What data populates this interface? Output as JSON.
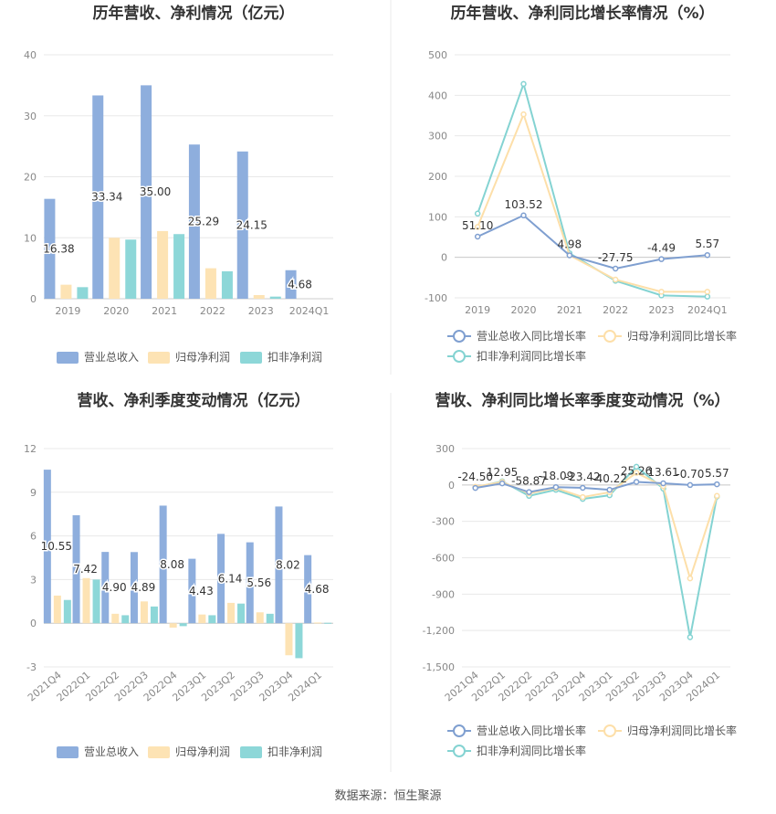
{
  "source": "数据来源：恒生聚源",
  "colors": {
    "revenue": "#8eaedd",
    "net_profit": "#fde3b4",
    "deducted": "#8dd7d8",
    "revenue_line": "#7f9fd0",
    "net_line": "#fddfa9",
    "deducted_line": "#84d3d2",
    "grid": "#e8e8e8",
    "axis_text": "#888888"
  },
  "chart_data": [
    {
      "type": "bar",
      "title": "历年营收、净利情况（亿元）",
      "categories": [
        "2019",
        "2020",
        "2021",
        "2022",
        "2023",
        "2024Q1"
      ],
      "ylim": [
        0,
        40
      ],
      "yticks": [
        "0",
        "10",
        "20",
        "30",
        "40"
      ],
      "grid": true,
      "legend_position": "bottom",
      "series": [
        {
          "name": "营业总收入",
          "values": [
            16.38,
            33.34,
            35.0,
            25.29,
            24.15,
            4.68
          ]
        },
        {
          "name": "归母净利润",
          "values": [
            2.3,
            10.0,
            11.1,
            5.0,
            0.6,
            null
          ]
        },
        {
          "name": "扣非净利润",
          "values": [
            1.9,
            9.7,
            10.6,
            4.5,
            0.35,
            null
          ]
        }
      ],
      "data_labels": [
        "16.38",
        "33.34",
        "35.00",
        "25.29",
        "24.15",
        "4.68"
      ]
    },
    {
      "type": "line",
      "title": "历年营收、净利同比增长率情况（%）",
      "categories": [
        "2019",
        "2020",
        "2021",
        "2022",
        "2023",
        "2024Q1"
      ],
      "ylim": [
        -100,
        500
      ],
      "yticks": [
        "-100",
        "0",
        "100",
        "200",
        "300",
        "400",
        "500"
      ],
      "grid": true,
      "legend_position": "bottom",
      "series": [
        {
          "name": "营业总收入同比增长率",
          "values": [
            51.1,
            103.52,
            4.98,
            -27.75,
            -4.49,
            5.57
          ]
        },
        {
          "name": "归母净利润同比增长率",
          "values": [
            75,
            353,
            5,
            -55,
            -85,
            -85
          ]
        },
        {
          "name": "扣非净利润同比增长率",
          "values": [
            108,
            428,
            10,
            -58,
            -94,
            -97
          ]
        }
      ],
      "data_labels": [
        "51.10",
        "103.52",
        "4.98",
        "-27.75",
        "-4.49",
        "5.57"
      ]
    },
    {
      "type": "bar",
      "title": "营收、净利季度变动情况（亿元）",
      "categories": [
        "2021Q4",
        "2022Q1",
        "2022Q2",
        "2022Q3",
        "2022Q4",
        "2023Q1",
        "2023Q2",
        "2023Q3",
        "2023Q4",
        "2024Q1"
      ],
      "ylim": [
        -3,
        12
      ],
      "yticks": [
        "-3",
        "0",
        "3",
        "6",
        "9",
        "12"
      ],
      "grid": true,
      "legend_position": "bottom",
      "series": [
        {
          "name": "营业总收入",
          "values": [
            10.55,
            7.42,
            4.9,
            4.89,
            8.08,
            4.43,
            6.14,
            5.56,
            8.02,
            4.68
          ]
        },
        {
          "name": "归母净利润",
          "values": [
            1.9,
            3.1,
            0.65,
            1.5,
            -0.3,
            0.6,
            1.4,
            0.75,
            -2.2,
            0.05
          ]
        },
        {
          "name": "扣非净利润",
          "values": [
            1.6,
            3.0,
            0.55,
            1.15,
            -0.2,
            0.55,
            1.35,
            0.65,
            -2.4,
            0.03
          ]
        }
      ],
      "data_labels": [
        "10.55",
        "7.42",
        "4.90",
        "4.89",
        "8.08",
        "4.43",
        "6.14",
        "5.56",
        "8.02",
        "4.68"
      ]
    },
    {
      "type": "line",
      "title": "营收、净利同比增长率季度变动情况（%）",
      "categories": [
        "2021Q4",
        "2022Q1",
        "2022Q2",
        "2022Q3",
        "2022Q4",
        "2023Q1",
        "2023Q2",
        "2023Q3",
        "2023Q4",
        "2024Q1"
      ],
      "ylim": [
        -1500,
        300
      ],
      "yticks": [
        "-1,500",
        "-1,200",
        "-900",
        "-600",
        "-300",
        "0",
        "300"
      ],
      "grid": true,
      "legend_position": "bottom",
      "series": [
        {
          "name": "营业总收入同比增长率",
          "values": [
            -24.5,
            12.95,
            -58.87,
            -18.09,
            -23.42,
            -40.22,
            25.26,
            13.61,
            -0.7,
            5.57
          ]
        },
        {
          "name": "归母净利润同比增长率",
          "values": [
            -15,
            25,
            -70,
            -25,
            -100,
            -60,
            100,
            -10,
            -770,
            -90
          ]
        },
        {
          "name": "扣非净利润同比增长率",
          "values": [
            -20,
            30,
            -90,
            -40,
            -115,
            -85,
            150,
            -30,
            -1255,
            -95
          ]
        }
      ],
      "data_labels": [
        "-24.50",
        "12.95",
        "-58.87",
        "-18.09",
        "-23.42",
        "-40.22",
        "25.26",
        "13.61",
        "-0.70",
        "5.57"
      ]
    }
  ]
}
